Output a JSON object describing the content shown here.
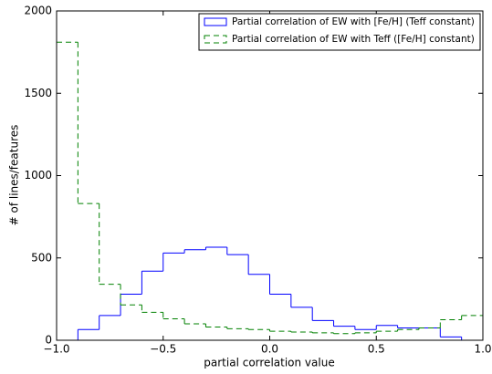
{
  "chart_data": {
    "type": "histogram",
    "xlabel": "partial correlation value",
    "ylabel": "# of lines/features",
    "bins": [
      -1.0,
      -0.9,
      -0.8,
      -0.7,
      -0.6,
      -0.5,
      -0.4,
      -0.3,
      -0.2,
      -0.1,
      0.0,
      0.1,
      0.2,
      0.3,
      0.4,
      0.5,
      0.6,
      0.7,
      0.8,
      0.9,
      1.0
    ],
    "series": [
      {
        "name": "Partial correlation of EW with [Fe/H] (Teff constant)",
        "color": "#0000ff",
        "linestyle": "solid",
        "values": [
          0,
          65,
          150,
          280,
          420,
          530,
          550,
          565,
          520,
          400,
          280,
          200,
          120,
          85,
          65,
          90,
          75,
          75,
          20,
          0
        ]
      },
      {
        "name": "Partial correlation of EW with Teff ([Fe/H] constant)",
        "color": "#008000",
        "linestyle": "dashed",
        "values": [
          1810,
          830,
          340,
          215,
          170,
          130,
          100,
          80,
          70,
          65,
          55,
          50,
          45,
          40,
          45,
          55,
          65,
          75,
          125,
          150
        ]
      }
    ],
    "xlim": [
      -1.0,
      1.0
    ],
    "ylim": [
      0,
      2000
    ],
    "xticks": [
      {
        "value": -1.0,
        "label": "−1.0"
      },
      {
        "value": -0.5,
        "label": "−0.5"
      },
      {
        "value": 0.0,
        "label": "0.0"
      },
      0.5,
      {
        "value": 1.0,
        "label": "1.0"
      }
    ],
    "yticks": [
      0,
      500,
      1000,
      1500,
      2000
    ],
    "legend": "upper right"
  }
}
